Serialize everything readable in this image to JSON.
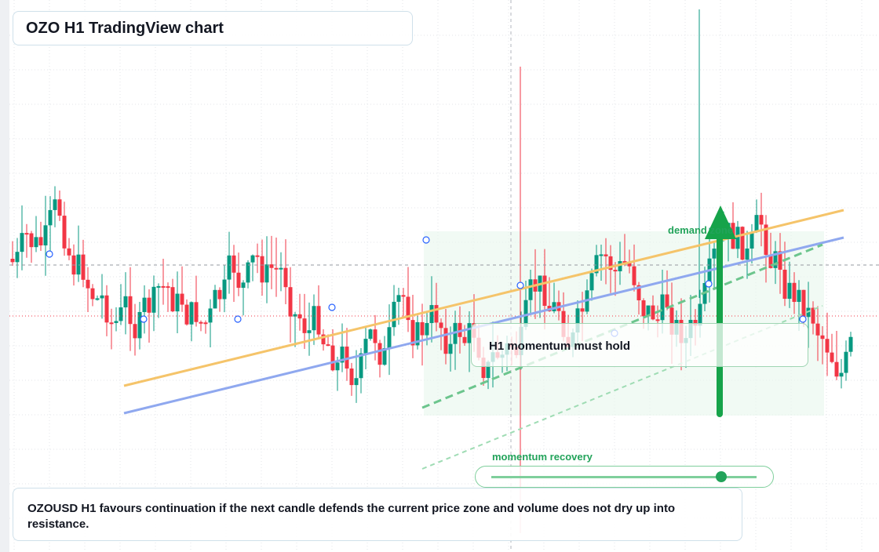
{
  "header": {
    "title": "OZO H1 TradingView chart"
  },
  "annotations": {
    "zone": "demand zone",
    "callout": "H1 momentum must hold",
    "slider_label": "momentum recovery"
  },
  "caption": "OZOUSD H1 favours continuation if the next candle defends the current price zone and volume does not dry up into resistance."
}
